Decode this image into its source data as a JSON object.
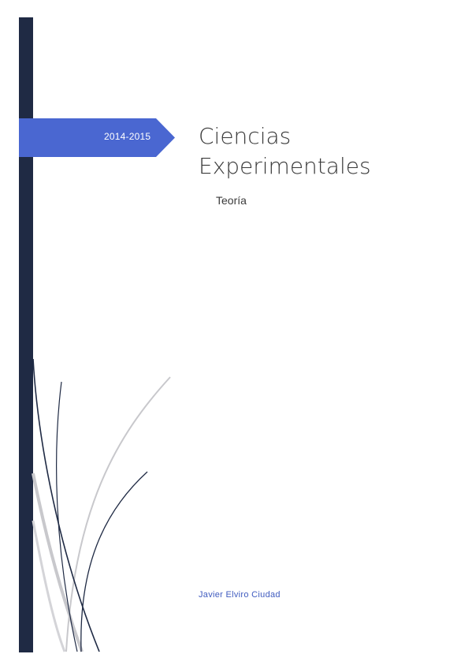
{
  "cover": {
    "year": "2014-2015",
    "title_line1": "Ciencias",
    "title_line2": "Experimentales",
    "subtitle": "Teoría",
    "author": "Javier Elviro Ciudad"
  },
  "colors": {
    "sidebar": "#1f2a44",
    "banner": "#4a67d1",
    "author_text": "#3f5bbf",
    "curve_dark": "#1f2a44",
    "curve_light": "#c8c8cc"
  }
}
